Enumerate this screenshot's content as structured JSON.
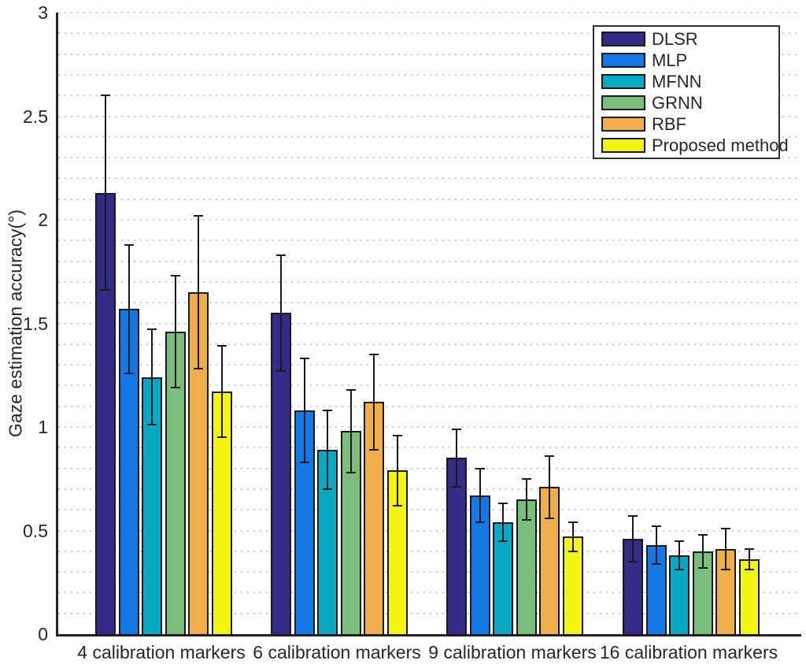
{
  "chart_data": {
    "type": "bar",
    "title": "",
    "xlabel": "",
    "ylabel": "Gaze estimation accuracy(°)",
    "ylim": [
      0,
      3
    ],
    "yticks": [
      "0",
      "0.5",
      "1",
      "1.5",
      "2",
      "2.5",
      "3"
    ],
    "ytick_values": [
      0,
      0.5,
      1,
      1.5,
      2,
      2.5,
      3
    ],
    "minor_grid_step": 0.1,
    "grid": "horizontal dotted minor gridlines",
    "legend_position": "top-right",
    "bar_edge_color": "#1a1a1a",
    "error_bar_color": "#1a1a1a",
    "categories": [
      "4 calibration markers",
      "6 calibration markers",
      "9 calibration markers",
      "16 calibration markers"
    ],
    "series": [
      {
        "name": "DLSR",
        "color": "#352B87",
        "values": [
          2.13,
          1.55,
          0.85,
          0.46
        ],
        "errors": [
          0.47,
          0.28,
          0.14,
          0.11
        ]
      },
      {
        "name": "MLP",
        "color": "#1377E4",
        "values": [
          1.57,
          1.08,
          0.67,
          0.43
        ],
        "errors": [
          0.31,
          0.25,
          0.13,
          0.09
        ]
      },
      {
        "name": "MFNN",
        "color": "#0BA8C4",
        "values": [
          1.24,
          0.89,
          0.54,
          0.38
        ],
        "errors": [
          0.23,
          0.19,
          0.09,
          0.07
        ]
      },
      {
        "name": "GRNN",
        "color": "#7BBE7C",
        "values": [
          1.46,
          0.98,
          0.65,
          0.4
        ],
        "errors": [
          0.27,
          0.2,
          0.1,
          0.08
        ]
      },
      {
        "name": "RBF",
        "color": "#EFAE49",
        "values": [
          1.65,
          1.12,
          0.71,
          0.41
        ],
        "errors": [
          0.37,
          0.23,
          0.15,
          0.1
        ]
      },
      {
        "name": "Proposed method",
        "color": "#F4F512",
        "values": [
          1.17,
          0.79,
          0.47,
          0.36
        ],
        "errors": [
          0.22,
          0.17,
          0.07,
          0.05
        ]
      }
    ]
  }
}
